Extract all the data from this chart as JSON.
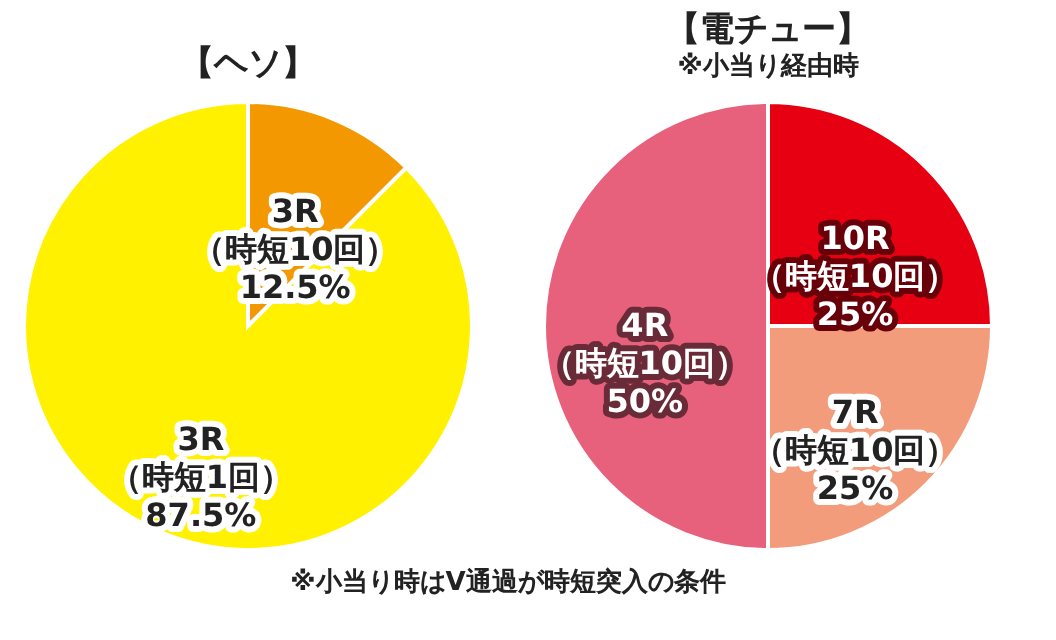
{
  "chart_data": [
    {
      "type": "pie",
      "title": "【ヘソ】",
      "categories": [
        "3R（時短10回）",
        "3R（時短1回）"
      ],
      "values": [
        12.5,
        87.5
      ],
      "value_labels": [
        "12.5%",
        "87.5%"
      ],
      "colors": [
        "#f39800",
        "#fff100"
      ]
    },
    {
      "type": "pie",
      "title": "【電チュー】",
      "subtitle": "※小当り経由時",
      "categories": [
        "10R（時短10回）",
        "7R（時短10回）",
        "4R（時短10回）"
      ],
      "values": [
        25,
        25,
        50
      ],
      "value_labels": [
        "25%",
        "25%",
        "50%"
      ],
      "colors": [
        "#e60012",
        "#f29c7c",
        "#e8617c"
      ],
      "annotations": [
        "※小当り時はV通過が時短突入の条件"
      ]
    }
  ]
}
